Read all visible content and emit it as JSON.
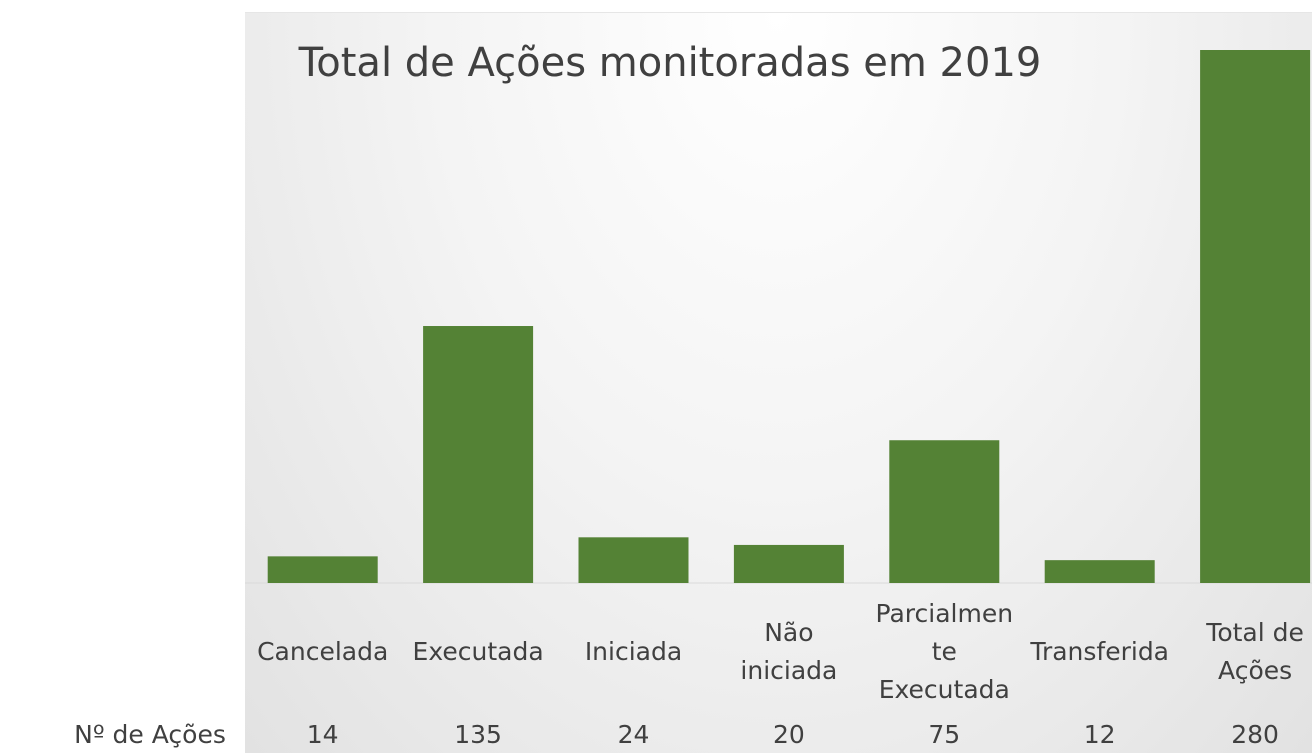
{
  "chart_data": {
    "type": "bar",
    "title": "Total de Ações monitoradas em 2019",
    "categories": [
      "Cancelada",
      "Executada",
      "Iniciada",
      "Não iniciada",
      "Parcialmente Executada",
      "Transferida",
      "Total de Ações"
    ],
    "series": [
      {
        "name": "Nº de Ações",
        "color": "#548235",
        "values": [
          14,
          135,
          24,
          20,
          75,
          12,
          280
        ]
      }
    ]
  }
}
